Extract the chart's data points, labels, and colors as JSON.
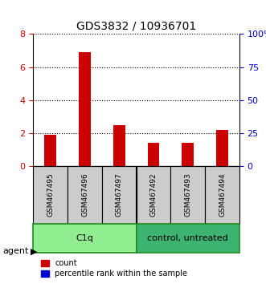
{
  "title": "GDS3832 / 10936701",
  "samples": [
    "GSM467495",
    "GSM467496",
    "GSM467497",
    "GSM467492",
    "GSM467493",
    "GSM467494"
  ],
  "counts": [
    1.9,
    6.9,
    2.5,
    1.4,
    1.4,
    2.2
  ],
  "percentile_ranks": [
    0.08,
    0.08,
    0.08,
    0.08,
    0.08,
    0.08
  ],
  "groups": [
    {
      "label": "C1q",
      "indices": [
        0,
        1,
        2
      ],
      "color": "#90EE90"
    },
    {
      "label": "control, untreated",
      "indices": [
        3,
        4,
        5
      ],
      "color": "#3CB371"
    }
  ],
  "group_border_color": "#228B22",
  "left_ylim": [
    0,
    8
  ],
  "right_ylim": [
    0,
    100
  ],
  "left_yticks": [
    0,
    2,
    4,
    6,
    8
  ],
  "right_yticks": [
    0,
    25,
    50,
    75,
    100
  ],
  "right_yticklabels": [
    "0",
    "25",
    "50",
    "75",
    "100%"
  ],
  "left_ycolor": "#cc0000",
  "right_ycolor": "#0000cc",
  "bar_color": "#cc0000",
  "pct_color": "#0000cc",
  "grid_color": "#000000",
  "sample_bg_color": "#cccccc",
  "agent_label": "agent",
  "legend_count_label": "count",
  "legend_pct_label": "percentile rank within the sample",
  "bar_width": 0.35
}
